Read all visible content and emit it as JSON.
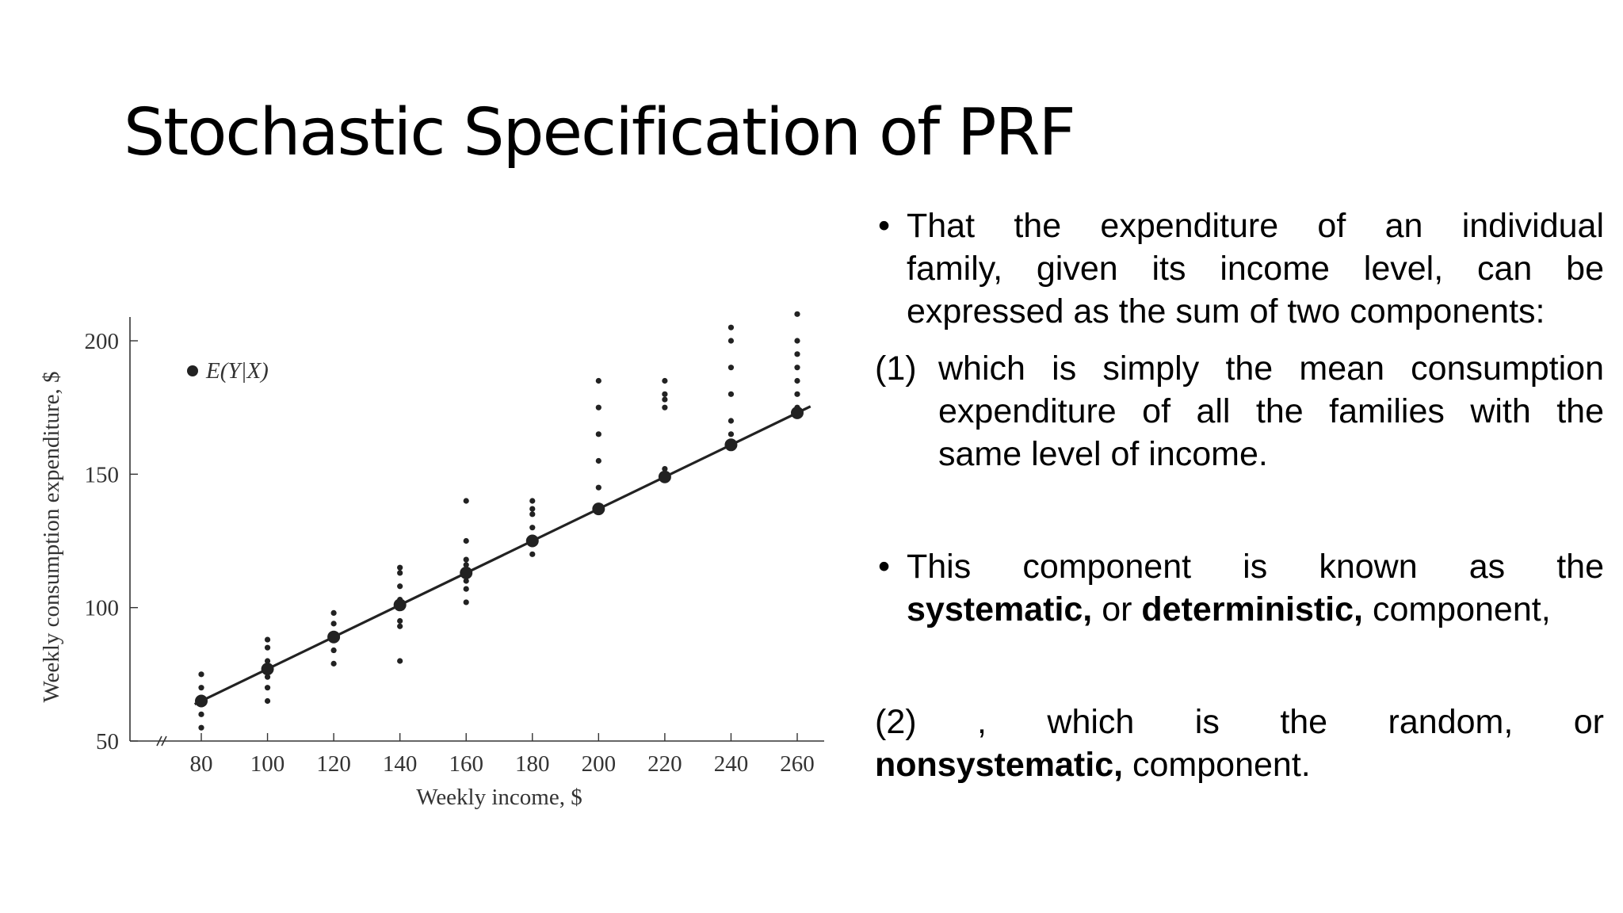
{
  "slide": {
    "title": "Stochastic Specification of PRF",
    "bullet1_line1": "That the expenditure of an individual",
    "bullet1_line2": "family, given its income level, can be",
    "bullet1_line3": "expressed as the sum of two components:",
    "item1_num": "(1)",
    "item1_line1": "which is simply the mean consumption",
    "item1_line2": "expenditure of all the families with the",
    "item1_line3": "same level of income.",
    "bullet2_line1": "This component is known as the",
    "bullet2_bold1": "systematic,",
    "bullet2_mid": " or ",
    "bullet2_bold2": "deterministic,",
    "bullet2_end": " component,",
    "item2_line1": "(2)  , which is the random, or",
    "item2_bold": "nonsystematic,",
    "item2_end": " component."
  },
  "chart_data": {
    "type": "scatter",
    "xlabel": "Weekly income, $",
    "ylabel": "Weekly consumption expenditure, $",
    "xlim": [
      70,
      265
    ],
    "ylim": [
      50,
      210
    ],
    "x_ticks": [
      80,
      100,
      120,
      140,
      160,
      180,
      200,
      220,
      240,
      260
    ],
    "y_ticks": [
      50,
      100,
      150,
      200
    ],
    "legend": "E(Y|X)",
    "legend_position": "top-left",
    "grid": false,
    "series": [
      {
        "x": [
          80,
          80,
          80,
          80,
          80,
          100,
          100,
          100,
          100,
          100,
          100,
          120,
          120,
          120,
          120,
          120,
          140,
          140,
          140,
          140,
          140,
          140,
          140,
          160,
          160,
          160,
          160,
          160,
          160,
          160,
          180,
          180,
          180,
          180,
          180,
          180,
          200,
          200,
          200,
          200,
          200,
          200,
          220,
          220,
          220,
          220,
          220,
          220,
          240,
          240,
          240,
          240,
          240,
          240,
          260,
          260,
          260,
          260,
          260,
          260,
          260
        ],
        "y": [
          55,
          60,
          65,
          70,
          75,
          65,
          70,
          74,
          80,
          85,
          88,
          79,
          84,
          90,
          94,
          98,
          80,
          93,
          95,
          103,
          108,
          113,
          115,
          102,
          107,
          110,
          116,
          118,
          125,
          140,
          120,
          125,
          130,
          135,
          137,
          140,
          137,
          145,
          155,
          165,
          175,
          185,
          150,
          152,
          175,
          178,
          180,
          185,
          165,
          170,
          180,
          190,
          200,
          205,
          175,
          180,
          185,
          190,
          195,
          200,
          210
        ]
      },
      {
        "name": "E(Y|X)",
        "x": [
          80,
          100,
          120,
          140,
          160,
          180,
          200,
          220,
          240,
          260
        ],
        "y": [
          65,
          77,
          89,
          101,
          113,
          125,
          137,
          149,
          161,
          173
        ]
      }
    ]
  }
}
